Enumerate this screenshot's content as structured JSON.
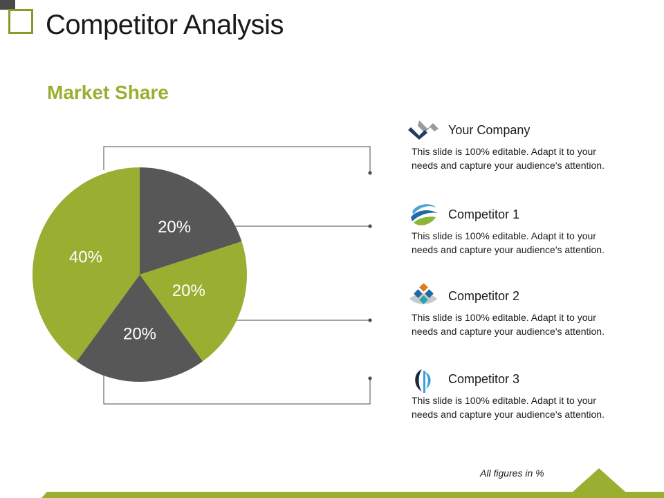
{
  "slide": {
    "title": "Competitor Analysis",
    "subtitle": "Market Share",
    "footer_note": "All figures in %"
  },
  "colors": {
    "accent_green": "#9aae32",
    "dark_gray": "#575757",
    "connector": "#4a4a4a"
  },
  "chart_data": {
    "type": "pie",
    "title": "",
    "slices": [
      {
        "label": "20%",
        "value": 20,
        "color": "#575757"
      },
      {
        "label": "20%",
        "value": 20,
        "color": "#9aae32"
      },
      {
        "label": "20%",
        "value": 20,
        "color": "#575757"
      },
      {
        "label": "40%",
        "value": 40,
        "color": "#9aae32"
      }
    ]
  },
  "legend": [
    {
      "name": "Your Company",
      "icon": "your-company-logo-icon",
      "description": "This slide is 100% editable. Adapt it to your needs and capture your audience's attention."
    },
    {
      "name": "Competitor 1",
      "icon": "competitor-1-logo-icon",
      "description": "This slide is 100% editable. Adapt it to your needs and capture your audience's attention."
    },
    {
      "name": "Competitor 2",
      "icon": "competitor-2-logo-icon",
      "description": "This slide is 100% editable. Adapt it to your needs and capture your audience's attention."
    },
    {
      "name": "Competitor 3",
      "icon": "competitor-3-logo-icon",
      "description": "This slide is 100% editable. Adapt it to your needs and capture your audience's attention."
    }
  ]
}
